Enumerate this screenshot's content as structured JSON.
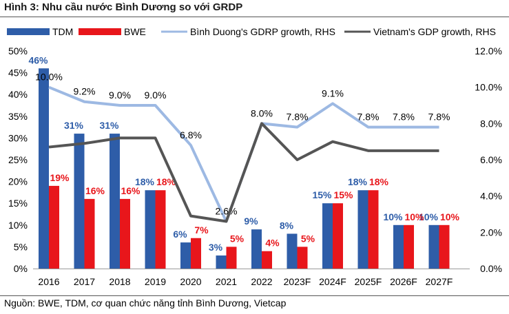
{
  "title": "Hình 3: Nhu cầu nước Bình Dương so với GRDP",
  "source": "Nguồn: BWE, TDM, cơ quan chức năng tỉnh Bình Dương, Vietcap",
  "chart_data": {
    "type": "bar",
    "categories": [
      "2016",
      "2017",
      "2018",
      "2019",
      "2020",
      "2021",
      "2022",
      "2023F",
      "2024F",
      "2025F",
      "2026F",
      "2027F"
    ],
    "series": [
      {
        "name": "TDM",
        "type": "bar",
        "axis": "left",
        "color": "#2E5DA8",
        "values": [
          46,
          31,
          31,
          18,
          6,
          3,
          9,
          8,
          15,
          18,
          10,
          10
        ],
        "labels": [
          "46%",
          "31%",
          "31%",
          "18%",
          "6%",
          "3%",
          "9%",
          "8%",
          "15%",
          "18%",
          "10%",
          "10%"
        ]
      },
      {
        "name": "BWE",
        "type": "bar",
        "axis": "left",
        "color": "#E8161B",
        "values": [
          19,
          16,
          16,
          18,
          7,
          5,
          4,
          5,
          15,
          18,
          10,
          10
        ],
        "labels": [
          "19%",
          "16%",
          "16%",
          "18%",
          "7%",
          "5%",
          "4%",
          "5%",
          "15%",
          "18%",
          "10%",
          "10%"
        ]
      },
      {
        "name": "Bình Duong's GDRP growth, RHS",
        "type": "line",
        "axis": "right",
        "color": "#9DB9E3",
        "values": [
          10.0,
          9.2,
          9.0,
          9.0,
          6.8,
          2.6,
          8.0,
          7.8,
          9.1,
          7.8,
          7.8,
          7.8
        ],
        "labels": [
          "10.0%",
          "9.2%",
          "9.0%",
          "9.0%",
          "6.8%",
          "2.6%",
          "8.0%",
          "7.8%",
          "9.1%",
          "7.8%",
          "7.8%",
          "7.8%"
        ]
      },
      {
        "name": "Vietnam's GDP growth, RHS",
        "type": "line",
        "axis": "right",
        "color": "#555555",
        "values": [
          6.7,
          6.9,
          7.2,
          7.2,
          2.9,
          2.6,
          8.0,
          6.0,
          7.0,
          6.5,
          6.5,
          6.5
        ]
      }
    ],
    "y_left": {
      "min": 0,
      "max": 50,
      "step": 5,
      "ticks": [
        "0%",
        "5%",
        "10%",
        "15%",
        "20%",
        "25%",
        "30%",
        "35%",
        "40%",
        "45%",
        "50%"
      ]
    },
    "y_right": {
      "min": 0,
      "max": 12,
      "step": 2,
      "ticks": [
        "0.0%",
        "2.0%",
        "4.0%",
        "6.0%",
        "8.0%",
        "10.0%",
        "12.0%"
      ]
    },
    "legend_position": "top",
    "grid": false
  }
}
